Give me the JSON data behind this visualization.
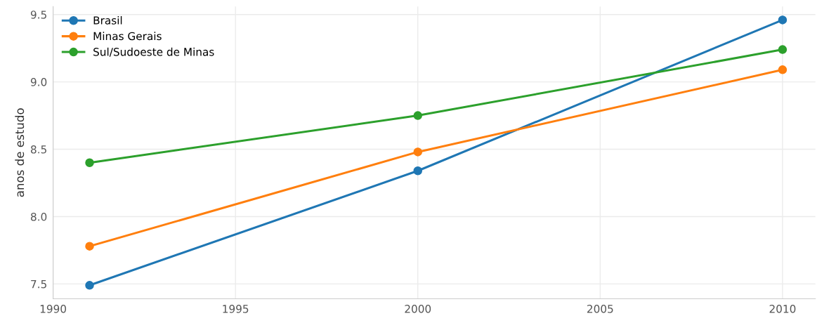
{
  "chart_data": {
    "type": "line",
    "ylabel": "anos de estudo",
    "x": [
      1991,
      2000,
      2010
    ],
    "series": [
      {
        "name": "Brasil",
        "color": "#1f77b4",
        "values": [
          7.49,
          8.34,
          9.46
        ]
      },
      {
        "name": "Minas Gerais",
        "color": "#ff7f0e",
        "values": [
          7.78,
          8.48,
          9.09
        ]
      },
      {
        "name": "Sul/Sudoeste de Minas",
        "color": "#2ca02c",
        "values": [
          8.4,
          8.75,
          9.24
        ]
      }
    ],
    "xlim": [
      1990,
      2010.9
    ],
    "xticks": [
      1990,
      1995,
      2000,
      2005,
      2010
    ],
    "ylim": [
      7.39,
      9.56
    ],
    "yticks": [
      7.5,
      {
        "value": 8,
        "label": "8.0"
      },
      8.5,
      {
        "value": 9,
        "label": "9.0"
      },
      9.5
    ],
    "grid": true,
    "legend": "top left",
    "marker": "circle",
    "line_style": "solid"
  }
}
